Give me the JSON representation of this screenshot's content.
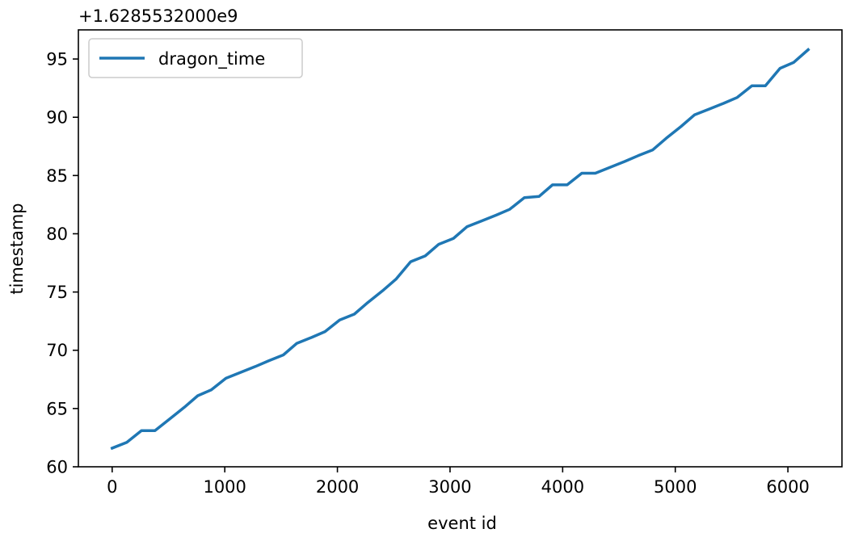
{
  "chart_data": {
    "type": "line",
    "title": "",
    "xlabel": "event id",
    "ylabel": "timestamp",
    "y_offset_label": "+1.6285532000e9",
    "xlim": [
      -300,
      6480
    ],
    "ylim": [
      60,
      97.5
    ],
    "xticks": [
      0,
      1000,
      2000,
      3000,
      4000,
      5000,
      6000
    ],
    "yticks": [
      60,
      65,
      70,
      75,
      80,
      85,
      90,
      95
    ],
    "grid": false,
    "legend_position": "top-left",
    "series": [
      {
        "name": "dragon_time",
        "color": "#1f77b4",
        "x": [
          0,
          130,
          260,
          380,
          510,
          640,
          760,
          880,
          1010,
          1140,
          1270,
          1390,
          1520,
          1640,
          1770,
          1890,
          2020,
          2150,
          2270,
          2400,
          2520,
          2650,
          2780,
          2900,
          3030,
          3150,
          3280,
          3410,
          3530,
          3660,
          3790,
          3910,
          4040,
          4170,
          4290,
          4420,
          4550,
          4670,
          4800,
          4920,
          5050,
          5170,
          5300,
          5430,
          5550,
          5680,
          5800,
          5930,
          6050,
          6180
        ],
        "y": [
          61.6,
          62.1,
          63.1,
          63.1,
          64.1,
          65.1,
          66.1,
          66.6,
          67.6,
          68.1,
          68.6,
          69.1,
          69.6,
          70.6,
          71.1,
          71.6,
          72.6,
          73.1,
          74.1,
          75.1,
          76.1,
          77.6,
          78.1,
          79.1,
          79.6,
          80.6,
          81.1,
          81.6,
          82.1,
          83.1,
          83.2,
          84.2,
          84.2,
          85.2,
          85.2,
          85.7,
          86.2,
          86.7,
          87.2,
          88.2,
          89.2,
          90.2,
          90.7,
          91.2,
          91.7,
          92.7,
          92.7,
          94.2,
          94.7,
          95.8
        ]
      }
    ]
  }
}
